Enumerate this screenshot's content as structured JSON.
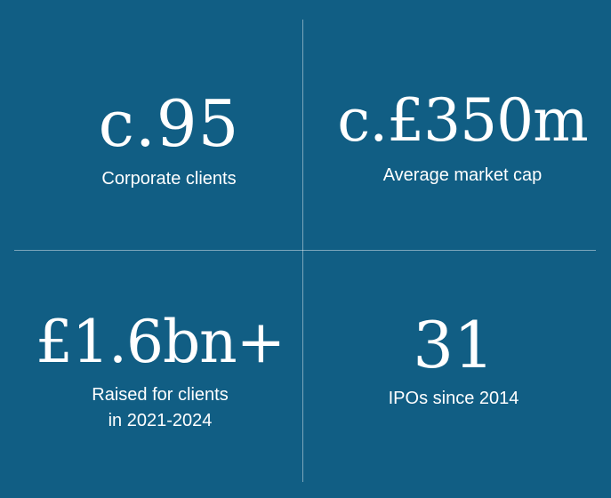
{
  "stats": [
    {
      "value": "c.95",
      "label": "Corporate clients"
    },
    {
      "value": "c.£350m",
      "label": "Average market cap"
    },
    {
      "value": "£1.6bn+",
      "label": "Raised for clients\nin 2021-2024"
    },
    {
      "value": "31",
      "label": "IPOs since 2014"
    }
  ],
  "colors": {
    "background": "#115e84",
    "text": "#ffffff",
    "divider": "#7fa8bf"
  }
}
